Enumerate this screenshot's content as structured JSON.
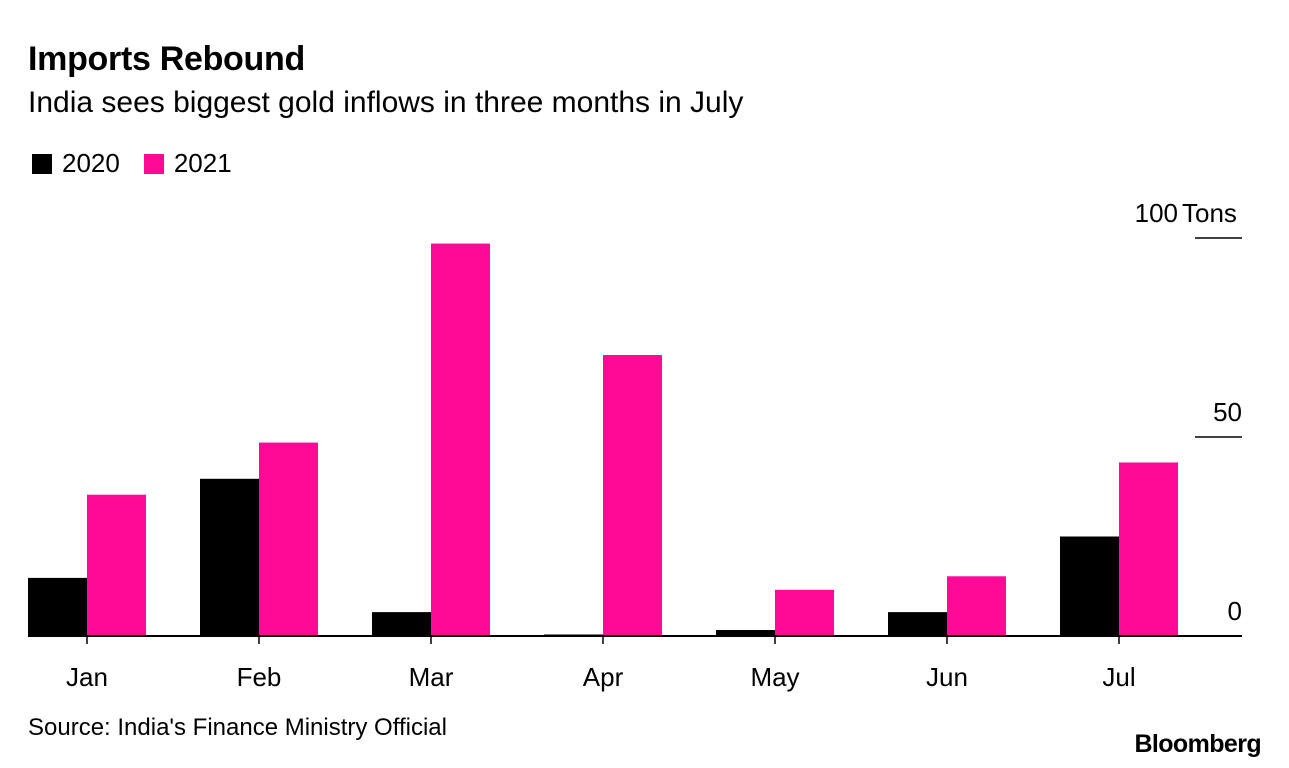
{
  "header": {
    "title": "Imports Rebound",
    "subtitle": "India sees biggest gold inflows in three months in July"
  },
  "legend": {
    "items": [
      {
        "label": "2020",
        "color": "#000000"
      },
      {
        "label": "2021",
        "color": "#ff0a96"
      }
    ]
  },
  "chart_data": {
    "type": "bar",
    "title": "Imports Rebound",
    "subtitle": "India sees biggest gold inflows in three months in July",
    "categories": [
      "Jan",
      "Feb",
      "Mar",
      "Apr",
      "May",
      "Jun",
      "Jul"
    ],
    "series": [
      {
        "name": "2020",
        "color": "#000000",
        "values": [
          14.6,
          39.5,
          6.0,
          0.0,
          1.5,
          6.0,
          25.0
        ]
      },
      {
        "name": "2021",
        "color": "#ff0a96",
        "values": [
          35.5,
          48.6,
          98.6,
          70.6,
          11.6,
          15.0,
          43.6
        ]
      }
    ],
    "ylim": [
      0,
      100
    ],
    "yticks": [
      0,
      50,
      100
    ],
    "yunit": "Tons",
    "ylabel": "Tons",
    "xlabel": "",
    "grid": false,
    "legend_position": "top-left"
  },
  "footer": {
    "source": "Source: India's Finance Ministry Official",
    "brand": "Bloomberg"
  }
}
